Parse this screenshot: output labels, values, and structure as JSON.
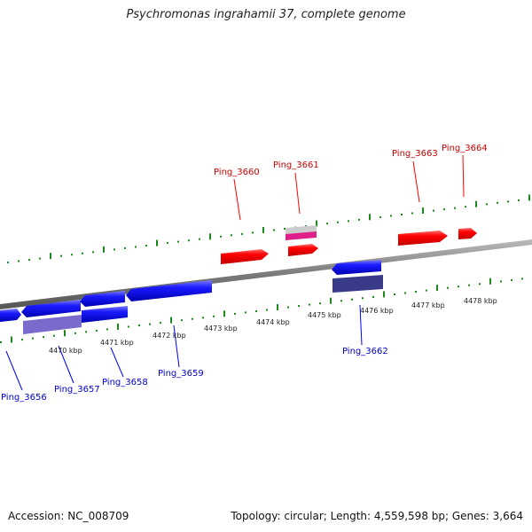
{
  "title": "Psychromonas ingrahamii 37, complete genome",
  "footer": {
    "accession": "Accession: NC_008709",
    "stats": "Topology: circular; Length: 4,559,598 bp; Genes: 3,664"
  },
  "colors": {
    "forward_gene": "#ff0000",
    "reverse_gene": "#1a1aff",
    "forward_label": "#cc0000",
    "reverse_label": "#0000cc",
    "tick": "#1a8a1a",
    "backbone": "#888888"
  },
  "scale_labels": [
    "4470 kbp",
    "4471 kbp",
    "4472 kbp",
    "4473 kbp",
    "4474 kbp",
    "4475 kbp",
    "4476 kbp",
    "4477 kbp",
    "4478 kbp"
  ],
  "forward_genes": [
    "Ping_3660",
    "Ping_3661",
    "Ping_3663",
    "Ping_3664"
  ],
  "reverse_genes": [
    "Ping_3656",
    "Ping_3657",
    "Ping_3658",
    "Ping_3659",
    "Ping_3662"
  ]
}
